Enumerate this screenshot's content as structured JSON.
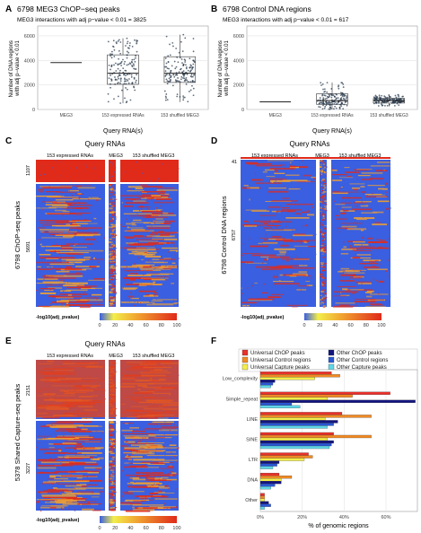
{
  "panels": {
    "A": {
      "letter": "A",
      "title": "6798 MEG3 ChOP−seq peaks",
      "subtitle": "MEG3 interactions with adj p−value < 0.01 = 3825"
    },
    "B": {
      "letter": "B",
      "title": "6798 Control DNA regions",
      "subtitle": "MEG3 interactions with adj p−value < 0.01 = 617"
    },
    "C": {
      "letter": "C",
      "header": "Query RNAs",
      "groups": [
        "153 expressed RNAs",
        "MEG3",
        "153 shuffled MEG3"
      ],
      "ylabel": "6798 ChOP-seq peaks",
      "rowlabels": [
        "1107",
        "5691"
      ],
      "legend_title": "-log10(adj_pvalue)",
      "legend_ticks": [
        "0",
        "20",
        "40",
        "60",
        "80",
        "100"
      ]
    },
    "D": {
      "letter": "D",
      "header": "Query RNAs",
      "groups": [
        "153 expressed RNAs",
        "MEG3",
        "153 shuffled MEG3"
      ],
      "ylabel": "6798 Control DNA regions",
      "rowlabels": [
        "41",
        "6757"
      ],
      "legend_title": "-log10(adj_pvalue)",
      "legend_ticks": [
        "0",
        "20",
        "40",
        "60",
        "80",
        "100"
      ]
    },
    "E": {
      "letter": "E",
      "header": "Query RNAs",
      "groups": [
        "153 expressed RNAs",
        "MEG3",
        "153 shuffled MEG3"
      ],
      "ylabel": "5378 Shared Capture-seq peaks",
      "rowlabels": [
        "2151",
        "3227"
      ],
      "legend_title": "-log10(adj_pvalue)",
      "legend_ticks": [
        "0",
        "20",
        "40",
        "60",
        "80",
        "100"
      ]
    },
    "F": {
      "letter": "F"
    }
  },
  "heatmap_colors": {
    "low": "#3a5fe0",
    "mid": "#f0a030",
    "high": "#e02a1a"
  },
  "chart_data": [
    {
      "type": "box",
      "panel": "A",
      "categories": [
        "MEG3",
        "153 expressed RNAs",
        "153 shuffled MEG3"
      ],
      "xlabel": "Query RNA(s)",
      "ylabel": "Number of DNA regions with adj p−value < 0.01",
      "ylim": [
        0,
        6800
      ],
      "yticks": [
        0,
        2000,
        4000,
        6000
      ],
      "boxes": [
        {
          "name": "MEG3",
          "q1": 3825,
          "median": 3825,
          "q3": 3825,
          "whisker_low": 3825,
          "whisker_high": 3825
        },
        {
          "name": "153 expressed RNAs",
          "q1": 2050,
          "median": 2950,
          "q3": 4450,
          "whisker_low": 500,
          "whisker_high": 5800
        },
        {
          "name": "153 shuffled MEG3",
          "q1": 2200,
          "median": 2950,
          "q3": 4300,
          "whisker_low": 600,
          "whisker_high": 6100
        }
      ],
      "grid": true
    },
    {
      "type": "box",
      "panel": "B",
      "categories": [
        "MEG3",
        "153 expressed RNAs",
        "153 shuffled MEG3"
      ],
      "xlabel": "Query RNA(s)",
      "ylabel": "Number of DNA regions with adj p−value < 0.01",
      "ylim": [
        0,
        6800
      ],
      "yticks": [
        0,
        2000,
        4000,
        6000
      ],
      "boxes": [
        {
          "name": "MEG3",
          "q1": 617,
          "median": 617,
          "q3": 617,
          "whisker_low": 617,
          "whisker_high": 617
        },
        {
          "name": "153 expressed RNAs",
          "q1": 420,
          "median": 720,
          "q3": 1280,
          "whisker_low": 0,
          "whisker_high": 2200
        },
        {
          "name": "153 shuffled MEG3",
          "q1": 520,
          "median": 720,
          "q3": 900,
          "whisker_low": 250,
          "whisker_high": 1200
        }
      ],
      "grid": true
    },
    {
      "type": "bar",
      "panel": "F",
      "orientation": "horizontal",
      "categories": [
        "Low_complexity",
        "Simple_repeat",
        "LINE",
        "SINE",
        "LTR",
        "DNA",
        "Other"
      ],
      "xlabel": "% of genomic regions",
      "xlim": [
        0,
        75
      ],
      "xticks": [
        0,
        20,
        40,
        60
      ],
      "xtick_labels": [
        "0%",
        "20%",
        "40%",
        "60%"
      ],
      "legend_position": "top",
      "series": [
        {
          "name": "Universal ChOP peaks",
          "color": "#e8312a",
          "values": [
            34,
            62,
            39,
            35,
            23,
            9,
            2
          ]
        },
        {
          "name": "Universal Control regions",
          "color": "#f08a24",
          "values": [
            38,
            44,
            53,
            53,
            25,
            15,
            2
          ]
        },
        {
          "name": "Universal Capture peaks",
          "color": "#f3ee4a",
          "values": [
            26,
            32,
            31,
            32,
            21,
            10,
            2
          ]
        },
        {
          "name": "Other ChOP peaks",
          "color": "#13157e",
          "values": [
            7,
            74,
            37,
            35,
            9,
            10,
            4
          ]
        },
        {
          "name": "Other Control regions",
          "color": "#2a57d4",
          "values": [
            6,
            15,
            35,
            34,
            8,
            7,
            5
          ]
        },
        {
          "name": "Other Capture peaks",
          "color": "#5fd6e6",
          "values": [
            5,
            19,
            32,
            33,
            6,
            5,
            2
          ]
        }
      ]
    }
  ]
}
